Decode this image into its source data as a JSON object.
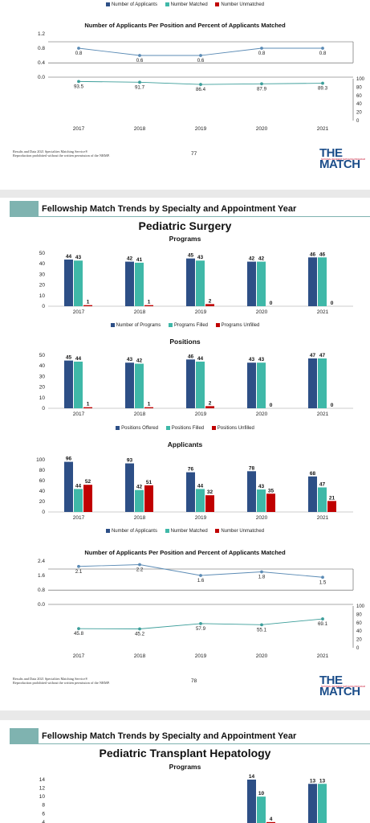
{
  "page77": {
    "legend": [
      "Number of Applicants",
      "Number Matched",
      "Number Unmatched"
    ],
    "chart_title": "Number of Applicants Per Position and Percent of Applicants Matched",
    "footer_line1": "Results and Data 2021 Specialties Matching Service®",
    "footer_line2": "Reproduction prohibited without the written permission of the NRMP.",
    "page_number": "77",
    "logo": "THE MATCH",
    "logo_sub": "NATIONAL RESIDENT MATCHING PROGRAM"
  },
  "page78": {
    "section_title": "Fellowship Match Trends by Specialty and Appointment Year",
    "specialty": "Pediatric Surgery",
    "programs_title": "Programs",
    "programs_legend": [
      "Number of Programs",
      "Programs Filled",
      "Programs Unfilled"
    ],
    "positions_title": "Positions",
    "positions_legend": [
      "Positions Offered",
      "Positions Filled",
      "Positions Unfilled"
    ],
    "applicants_title": "Applicants",
    "applicants_legend": [
      "Number of Applicants",
      "Number Matched",
      "Number Unmatched"
    ],
    "ratio_title": "Number of Applicants Per Position and Percent of Applicants Matched",
    "footer_line1": "Results and Data 2021 Specialties Matching Service®",
    "footer_line2": "Reproduction prohibited without the written permission of the NRMP.",
    "page_number": "78",
    "logo": "THE MATCH",
    "logo_sub": "NATIONAL RESIDENT MATCHING PROGRAM"
  },
  "page79": {
    "section_title": "Fellowship Match Trends by Specialty and Appointment Year",
    "specialty": "Pediatric Transplant Hepatology",
    "programs_title": "Programs"
  },
  "colors": {
    "navy": "#2d4f86",
    "teal": "#3fb8a8",
    "red": "#c00000",
    "line": "#5b8bb5"
  },
  "chart_data": [
    {
      "id": "p77_ratio",
      "type": "line",
      "title": "Number of Applicants Per Position and Percent of Applicants Matched",
      "x": [
        "2017",
        "2018",
        "2019",
        "2020",
        "2021"
      ],
      "series": [
        {
          "values": [
            0.8,
            0.6,
            0.6,
            0.8,
            0.8
          ],
          "axis": "left",
          "labels": [
            "0.8",
            "0.6",
            "0.6",
            "0.8",
            "0.8"
          ]
        },
        {
          "values": [
            93.5,
            91.7,
            86.4,
            87.9,
            89.3
          ],
          "axis": "right",
          "labels": [
            "93.5",
            "91.7",
            "86.4",
            "87.9",
            "89.3"
          ]
        }
      ],
      "ylim_left": [
        0.0,
        1.2
      ],
      "yticks_left": [
        "1.2",
        "0.8",
        "0.4",
        "0.0"
      ],
      "ylim_right": [
        0,
        100
      ],
      "yticks_right": [
        "100",
        "80",
        "60",
        "40",
        "20",
        "0"
      ]
    },
    {
      "id": "p78_programs",
      "type": "bar",
      "title": "Programs",
      "categories": [
        "2017",
        "2018",
        "2019",
        "2020",
        "2021"
      ],
      "series": [
        {
          "name": "Number of Programs",
          "values": [
            44,
            42,
            45,
            42,
            46
          ]
        },
        {
          "name": "Programs Filled",
          "values": [
            43,
            41,
            43,
            42,
            46
          ]
        },
        {
          "name": "Programs Unfilled",
          "values": [
            1,
            1,
            2,
            0,
            0
          ]
        }
      ],
      "ylim": [
        0,
        50
      ],
      "yticks": [
        "50",
        "40",
        "30",
        "20",
        "10",
        "0"
      ]
    },
    {
      "id": "p78_positions",
      "type": "bar",
      "title": "Positions",
      "categories": [
        "2017",
        "2018",
        "2019",
        "2020",
        "2021"
      ],
      "series": [
        {
          "name": "Positions Offered",
          "values": [
            45,
            43,
            46,
            43,
            47
          ]
        },
        {
          "name": "Positions Filled",
          "values": [
            44,
            42,
            44,
            43,
            47
          ]
        },
        {
          "name": "Positions Unfilled",
          "values": [
            1,
            1,
            2,
            0,
            0
          ]
        }
      ],
      "ylim": [
        0,
        50
      ],
      "yticks": [
        "50",
        "40",
        "30",
        "20",
        "10",
        "0"
      ]
    },
    {
      "id": "p78_applicants",
      "type": "bar",
      "title": "Applicants",
      "categories": [
        "2017",
        "2018",
        "2019",
        "2020",
        "2021"
      ],
      "series": [
        {
          "name": "Number of Applicants",
          "values": [
            96,
            93,
            76,
            78,
            68
          ]
        },
        {
          "name": "Number Matched",
          "values": [
            44,
            42,
            44,
            43,
            47
          ]
        },
        {
          "name": "Number Unmatched",
          "values": [
            52,
            51,
            32,
            35,
            21
          ]
        }
      ],
      "ylim": [
        0,
        100
      ],
      "yticks": [
        "100",
        "80",
        "60",
        "40",
        "20",
        "0"
      ]
    },
    {
      "id": "p78_ratio",
      "type": "line",
      "title": "Number of Applicants Per Position and Percent of Applicants Matched",
      "x": [
        "2017",
        "2018",
        "2019",
        "2020",
        "2021"
      ],
      "series": [
        {
          "values": [
            2.1,
            2.2,
            1.6,
            1.8,
            1.5
          ],
          "axis": "left",
          "labels": [
            "2.1",
            "2.2",
            "1.6",
            "1.8",
            "1.5"
          ]
        },
        {
          "values": [
            45.8,
            45.2,
            57.9,
            55.1,
            69.1
          ],
          "axis": "right",
          "labels": [
            "45.8",
            "45.2",
            "57.9",
            "55.1",
            "69.1"
          ]
        }
      ],
      "ylim_left": [
        0.0,
        2.4
      ],
      "yticks_left": [
        "2.4",
        "1.6",
        "0.8",
        "0.0"
      ],
      "ylim_right": [
        0,
        100
      ],
      "yticks_right": [
        "100",
        "80",
        "60",
        "40",
        "20",
        "0"
      ]
    },
    {
      "id": "p79_programs",
      "type": "bar",
      "title": "Programs",
      "categories": [
        "",
        "",
        "",
        "2020",
        "2021"
      ],
      "series": [
        {
          "name": "",
          "values": [
            null,
            null,
            null,
            14,
            13
          ]
        },
        {
          "name": "",
          "values": [
            null,
            null,
            null,
            10,
            13
          ]
        },
        {
          "name": "",
          "values": [
            null,
            null,
            null,
            4,
            null
          ]
        }
      ],
      "ylim": [
        0,
        14
      ],
      "yticks": [
        "14",
        "12",
        "10",
        "8",
        "6",
        "4"
      ]
    }
  ]
}
